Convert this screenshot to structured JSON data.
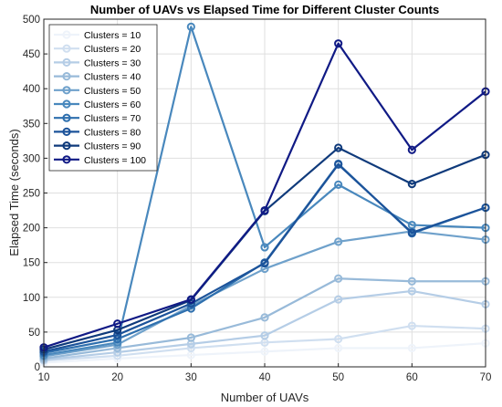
{
  "chart_data": {
    "type": "line",
    "title": "Number of UAVs vs Elapsed Time for Different Cluster Counts",
    "xlabel": "Number of UAVs",
    "ylabel": "Elapsed Time (seconds)",
    "x": [
      10,
      20,
      30,
      40,
      50,
      60,
      70
    ],
    "xlim": [
      10,
      70
    ],
    "ylim": [
      0,
      500
    ],
    "xticks": [
      10,
      20,
      30,
      40,
      50,
      60,
      70
    ],
    "yticks": [
      0,
      50,
      100,
      150,
      200,
      250,
      300,
      350,
      400,
      450,
      500
    ],
    "grid": true,
    "legend_position": "top-left",
    "marker": "circle",
    "series": [
      {
        "name": "Clusters = 10",
        "color": "#eef3fa",
        "values": [
          6,
          12,
          17,
          22,
          27,
          27,
          34
        ]
      },
      {
        "name": "Clusters = 20",
        "color": "#d0dff0",
        "values": [
          9,
          16,
          27,
          35,
          40,
          59,
          55
        ]
      },
      {
        "name": "Clusters = 30",
        "color": "#b5cde6",
        "values": [
          10,
          21,
          33,
          45,
          97,
          109,
          90
        ]
      },
      {
        "name": "Clusters = 40",
        "color": "#98bad9",
        "values": [
          12,
          27,
          42,
          71,
          127,
          123,
          123
        ]
      },
      {
        "name": "Clusters = 50",
        "color": "#6fa1cb",
        "values": [
          15,
          32,
          88,
          141,
          180,
          195,
          183
        ]
      },
      {
        "name": "Clusters = 60",
        "color": "#4988bd",
        "values": [
          17,
          35,
          489,
          172,
          262,
          204,
          200
        ]
      },
      {
        "name": "Clusters = 70",
        "color": "#2e6fae",
        "values": [
          20,
          40,
          84,
          150,
          292,
          192,
          229
        ]
      },
      {
        "name": "Clusters = 80",
        "color": "#1c539a",
        "values": [
          22,
          46,
          91,
          149,
          291,
          193,
          229
        ]
      },
      {
        "name": "Clusters = 90",
        "color": "#0f3a7b",
        "values": [
          25,
          53,
          96,
          224,
          315,
          263,
          305
        ]
      },
      {
        "name": "Clusters = 100",
        "color": "#101a85",
        "values": [
          28,
          62,
          97,
          225,
          465,
          312,
          396
        ]
      }
    ]
  }
}
